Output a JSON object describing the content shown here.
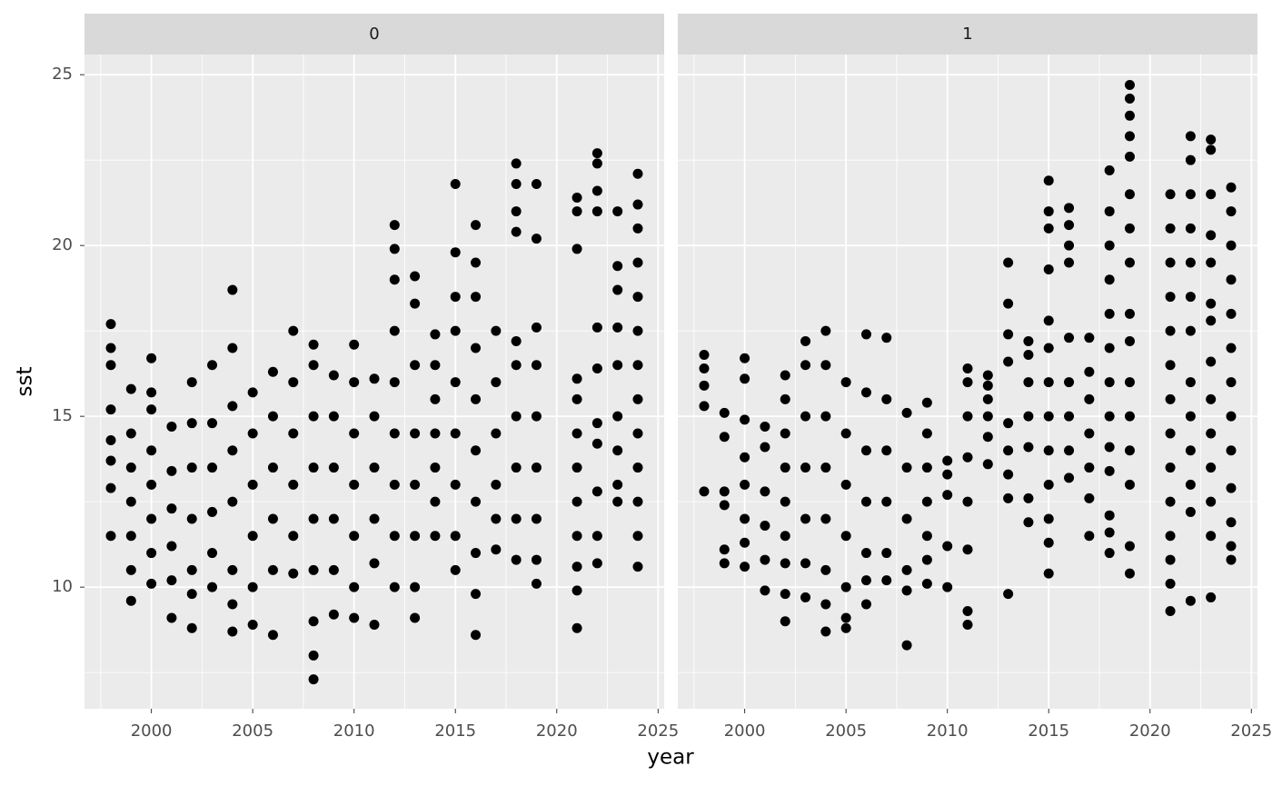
{
  "chart_data": {
    "type": "scatter",
    "x_label": "year",
    "y_label": "sst",
    "xlim": [
      1996.7,
      2025.3
    ],
    "ylim": [
      6.44,
      25.59
    ],
    "xticks": [
      2000,
      2005,
      2010,
      2015,
      2020,
      2025
    ],
    "yticks": [
      10,
      15,
      20,
      25
    ],
    "grid": true,
    "color": "#000000",
    "panels": [
      {
        "label": "0",
        "groups": [
          {
            "x": 1998,
            "y": [
              11.5,
              12.9,
              13.7,
              14.3,
              15.2,
              16.5,
              17.0,
              17.7
            ]
          },
          {
            "x": 1999,
            "y": [
              9.6,
              10.5,
              11.5,
              12.5,
              13.5,
              14.5,
              15.8
            ]
          },
          {
            "x": 2000,
            "y": [
              10.1,
              11.0,
              12.0,
              13.0,
              14.0,
              15.2,
              15.7,
              16.7
            ]
          },
          {
            "x": 2001,
            "y": [
              9.1,
              10.2,
              11.2,
              12.3,
              13.4,
              14.7
            ]
          },
          {
            "x": 2002,
            "y": [
              8.8,
              9.8,
              10.5,
              12.0,
              13.5,
              14.8,
              16.0
            ]
          },
          {
            "x": 2003,
            "y": [
              10.0,
              11.0,
              12.2,
              13.5,
              14.8,
              16.5
            ]
          },
          {
            "x": 2004,
            "y": [
              8.7,
              9.5,
              10.5,
              12.5,
              14.0,
              15.3,
              17.0,
              18.7
            ]
          },
          {
            "x": 2005,
            "y": [
              8.9,
              10.0,
              11.5,
              13.0,
              14.5,
              15.7
            ]
          },
          {
            "x": 2006,
            "y": [
              8.6,
              10.5,
              12.0,
              13.5,
              15.0,
              16.3
            ]
          },
          {
            "x": 2007,
            "y": [
              10.4,
              11.5,
              13.0,
              14.5,
              16.0,
              17.5
            ]
          },
          {
            "x": 2008,
            "y": [
              7.3,
              8.0,
              9.0,
              10.5,
              12.0,
              13.5,
              15.0,
              16.5,
              17.1
            ]
          },
          {
            "x": 2009,
            "y": [
              9.2,
              10.5,
              12.0,
              13.5,
              15.0,
              16.2
            ]
          },
          {
            "x": 2010,
            "y": [
              9.1,
              10.0,
              11.5,
              13.0,
              14.5,
              16.0,
              17.1
            ]
          },
          {
            "x": 2011,
            "y": [
              8.9,
              10.7,
              12.0,
              13.5,
              15.0,
              16.1
            ]
          },
          {
            "x": 2012,
            "y": [
              10.0,
              11.5,
              13.0,
              14.5,
              16.0,
              17.5,
              19.0,
              19.9,
              20.6
            ]
          },
          {
            "x": 2013,
            "y": [
              9.1,
              10.0,
              11.5,
              13.0,
              14.5,
              16.5,
              18.3,
              19.1
            ]
          },
          {
            "x": 2014,
            "y": [
              11.5,
              12.5,
              13.5,
              14.5,
              15.5,
              16.5,
              17.4
            ]
          },
          {
            "x": 2015,
            "y": [
              10.5,
              11.5,
              13.0,
              14.5,
              16.0,
              17.5,
              18.5,
              19.8,
              21.8
            ]
          },
          {
            "x": 2016,
            "y": [
              8.6,
              9.8,
              11.0,
              12.5,
              14.0,
              15.5,
              17.0,
              18.5,
              19.5,
              20.6
            ]
          },
          {
            "x": 2017,
            "y": [
              11.1,
              12.0,
              13.0,
              14.5,
              16.0,
              17.5
            ]
          },
          {
            "x": 2018,
            "y": [
              10.8,
              12.0,
              13.5,
              15.0,
              16.5,
              17.2,
              20.4,
              21.0,
              21.8,
              22.4
            ]
          },
          {
            "x": 2019,
            "y": [
              10.1,
              10.8,
              12.0,
              13.5,
              15.0,
              16.5,
              17.6,
              20.2,
              21.8
            ]
          },
          {
            "x": 2021,
            "y": [
              8.8,
              9.9,
              10.6,
              11.5,
              12.5,
              13.5,
              14.5,
              15.5,
              16.1,
              19.9,
              21.0,
              21.4
            ]
          },
          {
            "x": 2022,
            "y": [
              10.7,
              11.5,
              12.8,
              14.2,
              14.8,
              16.4,
              17.6,
              21.0,
              21.6,
              22.4,
              22.7
            ]
          },
          {
            "x": 2023,
            "y": [
              12.5,
              13.0,
              14.0,
              15.0,
              16.5,
              17.6,
              18.7,
              19.4,
              21.0
            ]
          },
          {
            "x": 2024,
            "y": [
              10.6,
              11.5,
              12.5,
              13.5,
              14.5,
              15.5,
              16.5,
              17.5,
              18.5,
              19.5,
              20.5,
              21.2,
              22.1
            ]
          }
        ]
      },
      {
        "label": "1",
        "groups": [
          {
            "x": 1998,
            "y": [
              12.8,
              15.3,
              15.9,
              16.4,
              16.8
            ]
          },
          {
            "x": 1999,
            "y": [
              10.7,
              11.1,
              12.4,
              12.8,
              14.4,
              15.1
            ]
          },
          {
            "x": 2000,
            "y": [
              10.6,
              11.3,
              12.0,
              13.0,
              13.8,
              14.9,
              16.1,
              16.7
            ]
          },
          {
            "x": 2001,
            "y": [
              9.9,
              10.8,
              11.8,
              12.8,
              14.1,
              14.7
            ]
          },
          {
            "x": 2002,
            "y": [
              9.0,
              9.8,
              10.7,
              11.5,
              12.5,
              13.5,
              14.5,
              15.5,
              16.2
            ]
          },
          {
            "x": 2003,
            "y": [
              9.7,
              10.7,
              12.0,
              13.5,
              15.0,
              16.5,
              17.2
            ]
          },
          {
            "x": 2004,
            "y": [
              8.7,
              9.5,
              10.5,
              12.0,
              13.5,
              15.0,
              16.5,
              17.5
            ]
          },
          {
            "x": 2005,
            "y": [
              8.8,
              9.1,
              10.0,
              11.5,
              13.0,
              14.5,
              16.0
            ]
          },
          {
            "x": 2006,
            "y": [
              9.5,
              10.2,
              11.0,
              12.5,
              14.0,
              15.7,
              17.4
            ]
          },
          {
            "x": 2007,
            "y": [
              10.2,
              11.0,
              12.5,
              14.0,
              15.5,
              17.3
            ]
          },
          {
            "x": 2008,
            "y": [
              8.3,
              9.9,
              10.5,
              12.0,
              13.5,
              15.1
            ]
          },
          {
            "x": 2009,
            "y": [
              10.1,
              10.8,
              11.5,
              12.5,
              13.5,
              14.5,
              15.4
            ]
          },
          {
            "x": 2010,
            "y": [
              10.0,
              11.2,
              12.7,
              13.3,
              13.7
            ]
          },
          {
            "x": 2011,
            "y": [
              8.9,
              9.3,
              11.1,
              12.5,
              13.8,
              15.0,
              16.0,
              16.4
            ]
          },
          {
            "x": 2012,
            "y": [
              13.6,
              14.4,
              15.0,
              15.5,
              15.9,
              16.2
            ]
          },
          {
            "x": 2013,
            "y": [
              9.8,
              12.6,
              13.3,
              14.0,
              14.8,
              16.6,
              17.4,
              18.3,
              19.5
            ]
          },
          {
            "x": 2014,
            "y": [
              11.9,
              12.6,
              14.1,
              15.0,
              16.0,
              16.8,
              17.2
            ]
          },
          {
            "x": 2015,
            "y": [
              10.4,
              11.3,
              12.0,
              13.0,
              14.0,
              15.0,
              16.0,
              17.0,
              17.8,
              19.3,
              20.5,
              21.0,
              21.9
            ]
          },
          {
            "x": 2016,
            "y": [
              13.2,
              14.0,
              15.0,
              16.0,
              17.3,
              19.5,
              20.0,
              20.6,
              21.1
            ]
          },
          {
            "x": 2017,
            "y": [
              11.5,
              12.6,
              13.5,
              14.5,
              15.5,
              16.3,
              17.3
            ]
          },
          {
            "x": 2018,
            "y": [
              11.0,
              11.6,
              12.1,
              13.4,
              14.1,
              15.0,
              16.0,
              17.0,
              18.0,
              19.0,
              20.0,
              21.0,
              22.2
            ]
          },
          {
            "x": 2019,
            "y": [
              10.4,
              11.2,
              13.0,
              14.0,
              15.0,
              16.0,
              17.2,
              18.0,
              19.5,
              20.5,
              21.5,
              22.6,
              23.2,
              23.8,
              24.3,
              24.7
            ]
          },
          {
            "x": 2021,
            "y": [
              9.3,
              10.1,
              10.8,
              11.5,
              12.5,
              13.5,
              14.5,
              15.5,
              16.5,
              17.5,
              18.5,
              19.5,
              20.5,
              21.5
            ]
          },
          {
            "x": 2022,
            "y": [
              9.6,
              12.2,
              13.0,
              14.0,
              15.0,
              16.0,
              17.5,
              18.5,
              19.5,
              20.5,
              21.5,
              22.5,
              23.2
            ]
          },
          {
            "x": 2023,
            "y": [
              9.7,
              11.5,
              12.5,
              13.5,
              14.5,
              15.5,
              16.6,
              17.8,
              18.3,
              19.5,
              20.3,
              21.5,
              22.8,
              23.1
            ]
          },
          {
            "x": 2024,
            "y": [
              10.8,
              11.2,
              11.9,
              12.9,
              14.0,
              15.0,
              16.0,
              17.0,
              18.0,
              19.0,
              20.0,
              21.0,
              21.7
            ]
          }
        ]
      }
    ]
  }
}
